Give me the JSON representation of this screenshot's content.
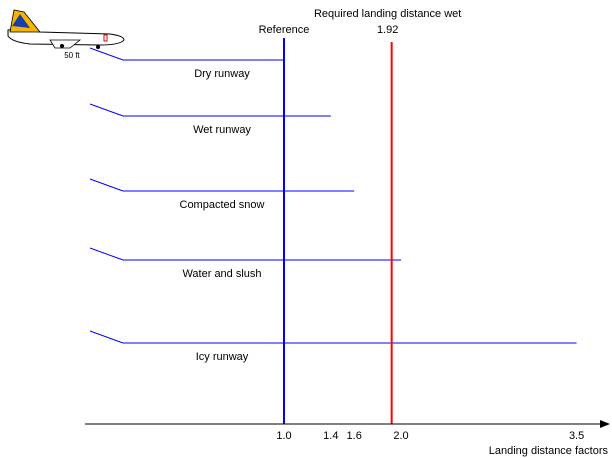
{
  "chart_data": {
    "type": "bar",
    "orientation": "horizontal",
    "categories": [
      "Dry runway",
      "Wet runway",
      "Compacted snow",
      "Water and slush",
      "Icy runway"
    ],
    "values": [
      1.0,
      1.4,
      1.6,
      2.0,
      3.5
    ],
    "color": "#0000ff",
    "xlim": [
      -0.7,
      3.7
    ],
    "xticks": [
      {
        "value": 1,
        "label": "1.0"
      },
      1.4,
      1.6,
      {
        "value": 2,
        "label": "2.0"
      },
      3.5
    ],
    "x_label": "Landing distance factors",
    "reference": {
      "label": "Reference",
      "value": 1,
      "color": "#0000ff"
    },
    "required": {
      "label": "Required landing distance wet",
      "value": 1.92,
      "color": "#ff0000"
    },
    "approach_height": "50 ft"
  }
}
